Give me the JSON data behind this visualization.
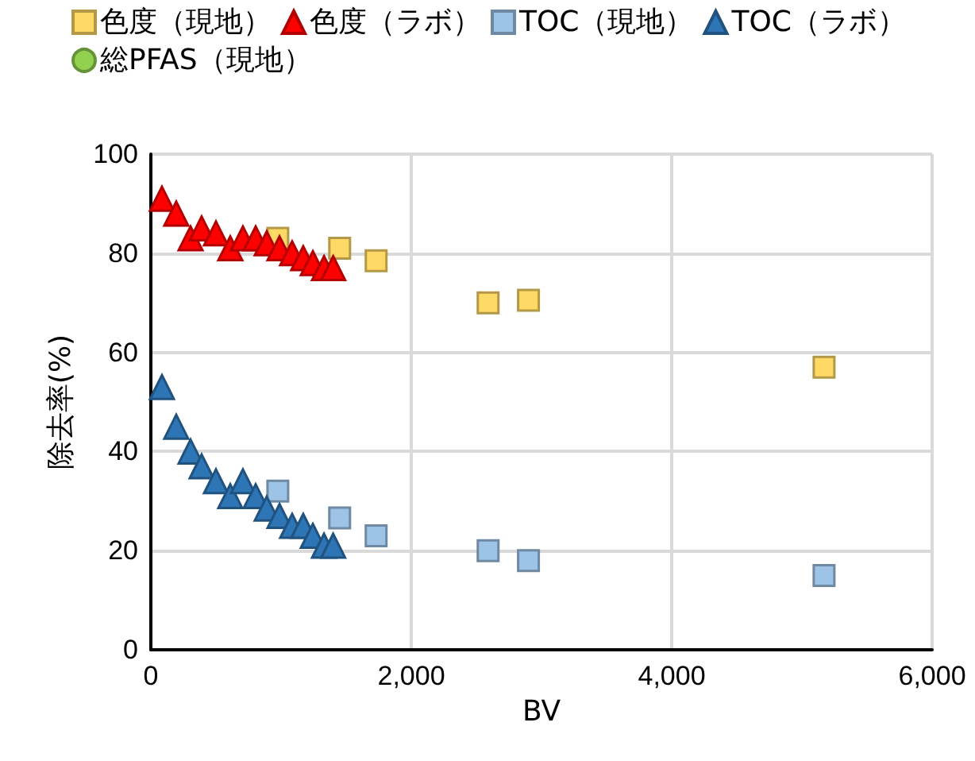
{
  "chart_data": {
    "type": "scatter",
    "xlabel": "BV",
    "ylabel": "除去率(%)",
    "xlim": [
      0,
      6000
    ],
    "xticks": [
      0,
      {
        "value": 2000,
        "label": "2,000"
      },
      {
        "value": 4000,
        "label": "4,000"
      },
      {
        "value": 6000,
        "label": "6,000"
      }
    ],
    "ylim": [
      0,
      100
    ],
    "yticks": [
      0,
      20,
      40,
      60,
      80,
      100
    ],
    "grid": true,
    "legend": "top",
    "series": [
      {
        "name": "色度（現地）",
        "color": "#ffd966",
        "marker": "square",
        "x": [
          975,
          1450,
          1730,
          2590,
          2900,
          5170
        ],
        "values": [
          83,
          81,
          78.5,
          70,
          70.5,
          57
        ]
      },
      {
        "name": "色度（ラボ）",
        "color": "#ff0000",
        "marker": "triangle",
        "x": [
          85,
          195,
          305,
          390,
          500,
          610,
          707,
          805,
          890,
          988,
          1085,
          1170,
          1244,
          1330,
          1400
        ],
        "values": [
          91,
          88,
          83,
          85,
          84,
          81,
          83,
          83,
          82,
          81,
          80,
          79,
          78,
          77,
          77
        ]
      },
      {
        "name": "TOC（現地）",
        "color": "#9dc3e6",
        "marker": "square",
        "x": [
          975,
          1450,
          1730,
          2590,
          2900,
          5170
        ],
        "values": [
          32,
          26.6,
          23,
          20,
          18,
          15
        ]
      },
      {
        "name": "TOC（ラボ）",
        "color": "#2e75b6",
        "marker": "triangle",
        "x": [
          85,
          195,
          305,
          390,
          500,
          610,
          707,
          805,
          890,
          988,
          1085,
          1170,
          1244,
          1330,
          1400
        ],
        "values": [
          53,
          45,
          40,
          37,
          34,
          31,
          34,
          31,
          28.5,
          27,
          25,
          25,
          23,
          21,
          21
        ]
      },
      {
        "name": "総PFAS（現地）",
        "color": "#92d050",
        "marker": "circle"
      }
    ]
  }
}
